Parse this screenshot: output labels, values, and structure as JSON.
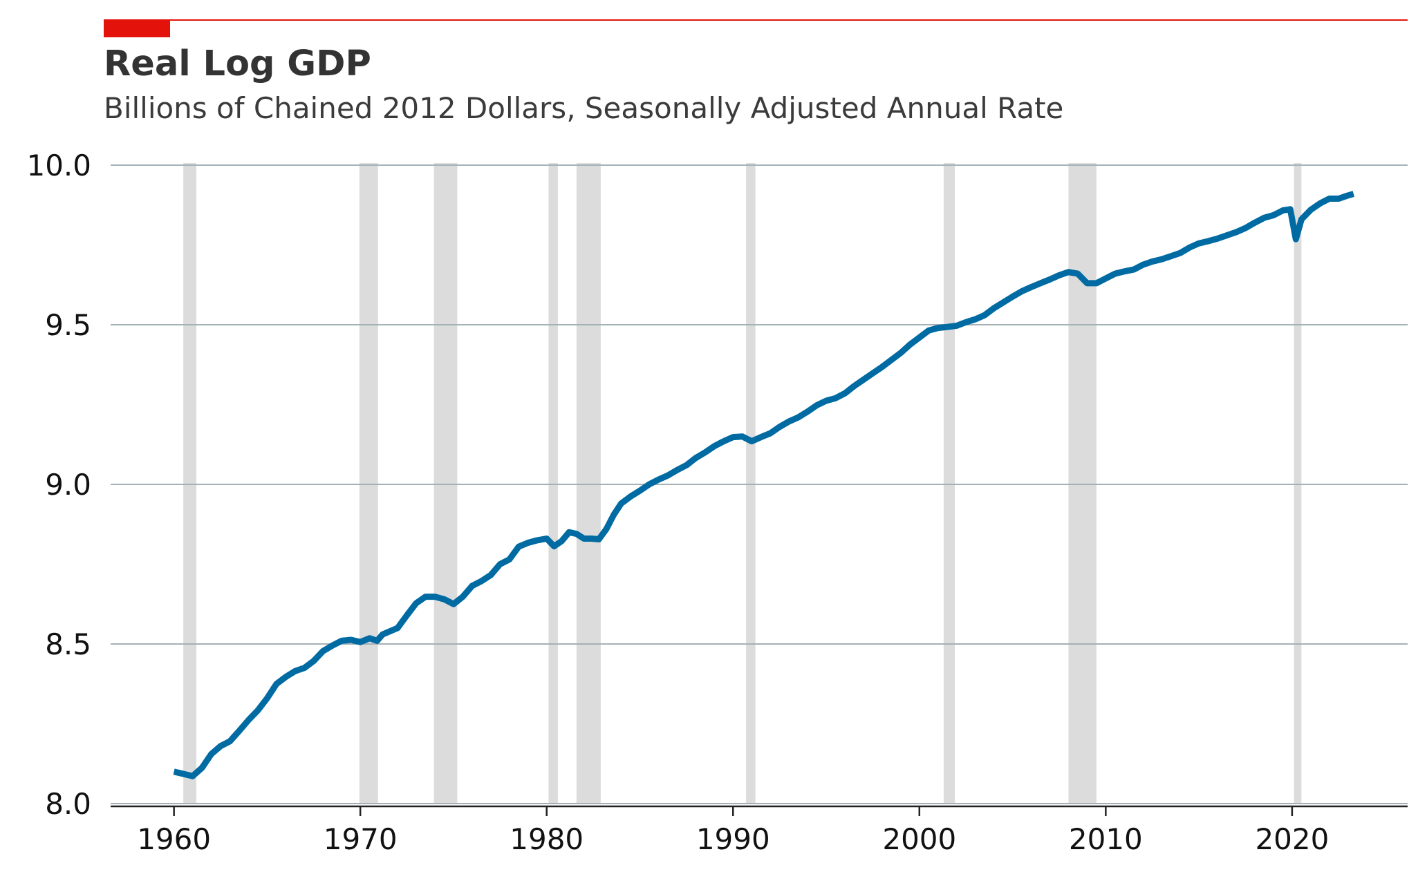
{
  "title": "Real Log GDP",
  "subtitle": "Billions of Chained 2012 Dollars, Seasonally Adjusted Annual Rate",
  "colors": {
    "accent": "#e3120b",
    "line": "#006ba2",
    "recession": "#dcdcdc",
    "grid": "#a4b1b7",
    "axis": "#222222"
  },
  "chart_data": {
    "type": "line",
    "title": "Real Log GDP",
    "subtitle": "Billions of Chained 2012 Dollars, Seasonally Adjusted Annual Rate",
    "xlabel": "",
    "ylabel": "",
    "xlim": [
      1956.6,
      2026.2
    ],
    "ylim": [
      8.0,
      10.0
    ],
    "grid": "horizontal",
    "x_ticks": [
      1960,
      1970,
      1980,
      1990,
      2000,
      2010,
      2020
    ],
    "x_tick_labels": [
      "1960",
      "1970",
      "1980",
      "1990",
      "2000",
      "2010",
      "2020"
    ],
    "y_ticks": [
      8.0,
      8.5,
      9.0,
      9.5,
      10.0
    ],
    "y_tick_labels": [
      "8.0",
      "8.5",
      "9.0",
      "9.5",
      "10.0"
    ],
    "recessions": [
      [
        1960.5,
        1961.2
      ],
      [
        1969.95,
        1970.95
      ],
      [
        1973.95,
        1975.2
      ],
      [
        1980.1,
        1980.6
      ],
      [
        1981.6,
        1982.9
      ],
      [
        1990.7,
        1991.2
      ],
      [
        2001.3,
        2001.9
      ],
      [
        2008.0,
        2009.5
      ],
      [
        2020.1,
        2020.5
      ]
    ],
    "series": [
      {
        "x": [
          1960.0,
          1960.5,
          1961.0,
          1961.5,
          1962.0,
          1962.5,
          1963.0,
          1963.5,
          1964.0,
          1964.5,
          1965.0,
          1965.5,
          1966.0,
          1966.5,
          1967.0,
          1967.5,
          1968.0,
          1968.5,
          1969.0,
          1969.5,
          1970.0,
          1970.5,
          1970.9,
          1971.2,
          1972.0,
          1972.5,
          1973.0,
          1973.5,
          1974.0,
          1974.5,
          1975.0,
          1975.5,
          1976.0,
          1976.5,
          1977.0,
          1977.5,
          1978.0,
          1978.5,
          1979.0,
          1979.5,
          1980.0,
          1980.4,
          1980.8,
          1981.2,
          1981.6,
          1982.0,
          1982.4,
          1982.8,
          1983.2,
          1983.6,
          1984.0,
          1984.5,
          1985.0,
          1985.5,
          1986.0,
          1986.5,
          1987.0,
          1987.5,
          1988.0,
          1988.5,
          1989.0,
          1989.5,
          1990.0,
          1990.5,
          1991.0,
          1991.5,
          1992.0,
          1992.5,
          1993.0,
          1993.5,
          1994.0,
          1994.5,
          1995.0,
          1995.5,
          1996.0,
          1996.5,
          1997.0,
          1997.5,
          1998.0,
          1998.5,
          1999.0,
          1999.5,
          2000.0,
          2000.5,
          2001.0,
          2001.5,
          2002.0,
          2002.5,
          2003.0,
          2003.5,
          2004.0,
          2004.5,
          2005.0,
          2005.5,
          2006.0,
          2006.5,
          2007.0,
          2007.5,
          2008.0,
          2008.5,
          2009.0,
          2009.5,
          2010.0,
          2010.5,
          2011.0,
          2011.5,
          2012.0,
          2012.5,
          2013.0,
          2013.5,
          2014.0,
          2014.5,
          2015.0,
          2015.5,
          2016.0,
          2016.5,
          2017.0,
          2017.5,
          2018.0,
          2018.5,
          2019.0,
          2019.5,
          2019.9,
          2020.2,
          2020.5,
          2020.8,
          2021.0,
          2021.5,
          2022.0,
          2022.5,
          2023.0,
          2023.3
        ],
        "y": [
          8.1,
          8.093,
          8.086,
          8.112,
          8.155,
          8.18,
          8.195,
          8.228,
          8.262,
          8.292,
          8.33,
          8.375,
          8.397,
          8.415,
          8.425,
          8.447,
          8.478,
          8.495,
          8.51,
          8.513,
          8.506,
          8.518,
          8.51,
          8.53,
          8.55,
          8.59,
          8.628,
          8.648,
          8.648,
          8.64,
          8.625,
          8.648,
          8.682,
          8.697,
          8.716,
          8.75,
          8.765,
          8.805,
          8.817,
          8.825,
          8.83,
          8.806,
          8.822,
          8.85,
          8.845,
          8.83,
          8.83,
          8.828,
          8.86,
          8.905,
          8.94,
          8.962,
          8.98,
          9.0,
          9.015,
          9.028,
          9.045,
          9.06,
          9.083,
          9.1,
          9.12,
          9.135,
          9.148,
          9.15,
          9.135,
          9.148,
          9.16,
          9.18,
          9.197,
          9.21,
          9.228,
          9.248,
          9.262,
          9.27,
          9.285,
          9.308,
          9.328,
          9.348,
          9.368,
          9.39,
          9.412,
          9.438,
          9.46,
          9.482,
          9.49,
          9.493,
          9.497,
          9.508,
          9.517,
          9.53,
          9.552,
          9.57,
          9.588,
          9.605,
          9.618,
          9.63,
          9.642,
          9.655,
          9.665,
          9.66,
          9.63,
          9.63,
          9.645,
          9.66,
          9.667,
          9.673,
          9.688,
          9.698,
          9.705,
          9.715,
          9.725,
          9.742,
          9.755,
          9.762,
          9.77,
          9.78,
          9.79,
          9.803,
          9.82,
          9.835,
          9.843,
          9.858,
          9.862,
          9.768,
          9.83,
          9.848,
          9.86,
          9.88,
          9.895,
          9.895,
          9.905,
          9.91
        ]
      }
    ]
  }
}
